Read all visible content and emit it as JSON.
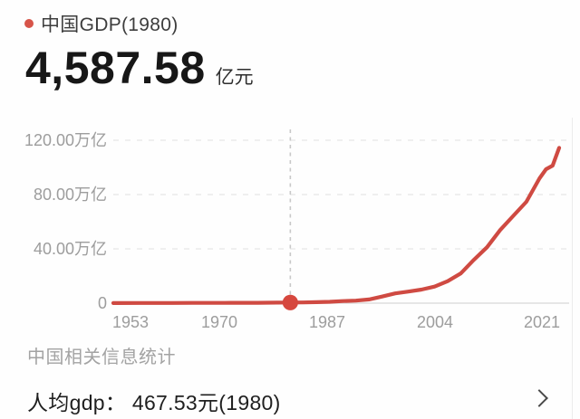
{
  "header": {
    "series_label": "中国GDP(1980)",
    "value": "4,587.58",
    "unit": "亿元"
  },
  "chart_data": {
    "type": "line",
    "title": "中国GDP(1980)",
    "x_range": [
      1953,
      2021
    ],
    "y_range": [
      0,
      120
    ],
    "y_axis_unit": "万亿",
    "grid": "horizontal-dashed",
    "legend_position": "top-left",
    "x_ticks": [
      "1953",
      "1970",
      "1987",
      "2004",
      "2021"
    ],
    "x_tick_years": [
      1953,
      1970,
      1987,
      2004,
      2021
    ],
    "y_ticks": [
      "120.00万亿",
      "80.00万亿",
      "40.00万亿",
      "0"
    ],
    "y_tick_values": [
      120,
      80,
      40,
      0
    ],
    "marker": {
      "year": 1980,
      "value": 0.4588
    },
    "series": [
      {
        "name": "中国GDP",
        "unit": "万亿元",
        "points": [
          [
            1953,
            0.0824
          ],
          [
            1957,
            0.1068
          ],
          [
            1960,
            0.1457
          ],
          [
            1962,
            0.1149
          ],
          [
            1965,
            0.1716
          ],
          [
            1968,
            0.1723
          ],
          [
            1970,
            0.2253
          ],
          [
            1972,
            0.2518
          ],
          [
            1975,
            0.2997
          ],
          [
            1978,
            0.3679
          ],
          [
            1980,
            0.4588
          ],
          [
            1982,
            0.5373
          ],
          [
            1984,
            0.7226
          ],
          [
            1986,
            1.0309
          ],
          [
            1988,
            1.518
          ],
          [
            1990,
            1.8873
          ],
          [
            1992,
            2.7195
          ],
          [
            1994,
            4.8638
          ],
          [
            1996,
            7.1814
          ],
          [
            1998,
            8.5196
          ],
          [
            2000,
            10.028
          ],
          [
            2002,
            12.1717
          ],
          [
            2004,
            16.184
          ],
          [
            2006,
            21.9439
          ],
          [
            2008,
            31.9245
          ],
          [
            2010,
            41.2119
          ],
          [
            2012,
            53.858
          ],
          [
            2014,
            64.3563
          ],
          [
            2016,
            74.6395
          ],
          [
            2018,
            91.9281
          ],
          [
            2019,
            98.6515
          ],
          [
            2020,
            101.3567
          ],
          [
            2021,
            114.367
          ]
        ]
      }
    ],
    "colors": {
      "line": "#cf4a42",
      "marker": "#d6473e",
      "bullet": "#d75449",
      "grid": "#e6e6e6",
      "axis": "#dddddd",
      "marker_line": "#c8c8c8",
      "tick_text": "#9d9d9d"
    }
  },
  "footer": {
    "section_title": "中国相关信息统计",
    "info_row": "人均gdp： 467.53元(1980)"
  }
}
